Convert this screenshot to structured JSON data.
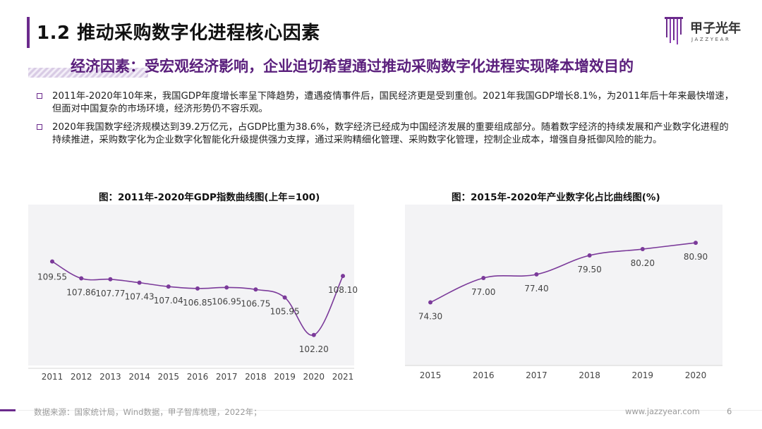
{
  "header": {
    "title": "1.2 推动采购数字化进程核心因素",
    "logo_cn": "甲子光年",
    "logo_en": "JAZZYEAR"
  },
  "subtitle": "经济因素：受宏观经济影响，企业迫切希望通过推动采购数字化进程实现降本增效目的",
  "bullets": [
    "2011年-2020年10年来，我国GDP年度增长率呈下降趋势，遭遇疫情事件后，国民经济更是受到重创。2021年我国GDP增长8.1%，为2011年后十年来最快增速，但面对中国复杂的市场环境，经济形势仍不容乐观。",
    "2020年我国数字经济规模达到39.2万亿元，占GDP比重为38.6%，数字经济已经成为中国经济发展的重要组成部分。随着数字经济的持续发展和产业数字化进程的持续推进，采购数字化为企业数字化智能化升级提供强力支撑，通过采购精细化管理、采购数字化管理，控制企业成本，增强自身抵御风险的能力。"
  ],
  "chart_data": [
    {
      "type": "line",
      "title": "图：2011年-2020年GDP指数曲线图(上年=100)",
      "categories": [
        "2011",
        "2012",
        "2013",
        "2014",
        "2015",
        "2016",
        "2017",
        "2018",
        "2019",
        "2020",
        "2021"
      ],
      "values": [
        109.55,
        107.86,
        107.77,
        107.43,
        107.04,
        106.85,
        106.95,
        106.75,
        105.95,
        102.2,
        108.1
      ],
      "labels": [
        "109.55",
        "107.86",
        "107.77",
        "107.43",
        "107.04",
        "106.85",
        "106.95",
        "106.75",
        "105.95",
        "102.20",
        "108.10"
      ],
      "ylim": [
        100,
        111
      ],
      "color": "#7b3a9a",
      "grid": false
    },
    {
      "type": "line",
      "title": "图：2015年-2020年产业数字化占比曲线图(%)",
      "categories": [
        "2015",
        "2016",
        "2017",
        "2018",
        "2019",
        "2020"
      ],
      "values": [
        74.3,
        77.0,
        77.4,
        79.5,
        80.2,
        80.9
      ],
      "labels": [
        "74.30",
        "77.00",
        "77.40",
        "79.50",
        "80.20",
        "80.90"
      ],
      "ylim": [
        72,
        82
      ],
      "color": "#7b3a9a",
      "grid": false
    }
  ],
  "footer": {
    "source": "数据来源：国家统计局，Wind数据，甲子智库梳理，2022年；",
    "site": "www.jazzyear.com",
    "page": "6"
  }
}
